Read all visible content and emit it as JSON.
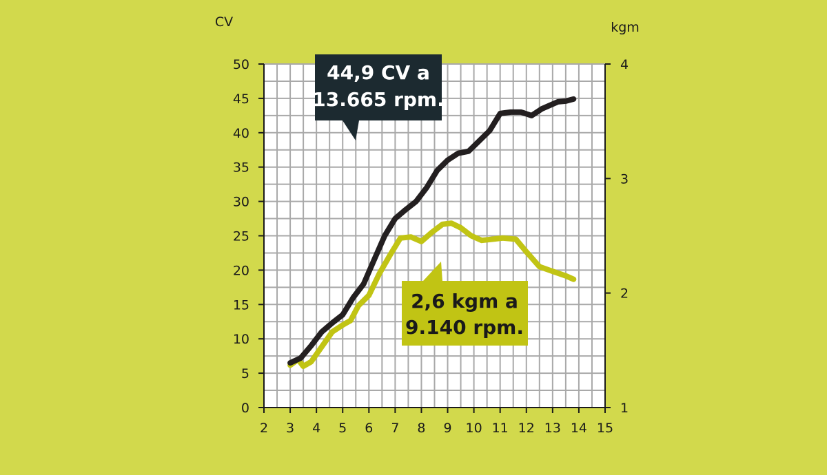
{
  "colors": {
    "background": "#d2d94c",
    "plot_area": "#ffffff",
    "grid": "#a9a9a9",
    "power_line": "#231f20",
    "torque_line": "#c1c414",
    "power_callout_bg": "#1c2a30",
    "power_callout_text": "#ffffff",
    "torque_callout_bg": "#c1c414",
    "torque_callout_text": "#1a1a1a"
  },
  "chart_data": {
    "type": "line",
    "xlabel": "",
    "ylabel_left": "CV",
    "ylabel_right": "kgm",
    "xlim": [
      2,
      15
    ],
    "ylim_left": [
      0,
      50
    ],
    "ylim_right": [
      1,
      4
    ],
    "x_ticks": [
      "2",
      "3",
      "4",
      "5",
      "6",
      "7",
      "8",
      "9",
      "10",
      "11",
      "12",
      "13",
      "14",
      "15"
    ],
    "y_left_ticks": [
      "0",
      "5",
      "10",
      "15",
      "20",
      "25",
      "30",
      "35",
      "40",
      "45",
      "50"
    ],
    "y_right_ticks": [
      "1",
      "2",
      "3",
      "4"
    ],
    "grid": true,
    "series": [
      {
        "key": "power",
        "axis": "left",
        "x": [
          3.0,
          3.4,
          3.8,
          4.2,
          4.6,
          5.0,
          5.4,
          5.8,
          6.2,
          6.6,
          7.0,
          7.4,
          7.8,
          8.2,
          8.6,
          9.0,
          9.4,
          9.8,
          10.2,
          10.6,
          11.0,
          11.4,
          11.8,
          12.2,
          12.6,
          12.9,
          13.2,
          13.5,
          13.8
        ],
        "y": [
          6.5,
          7.2,
          9.0,
          11.0,
          12.3,
          13.5,
          16.0,
          18.0,
          21.5,
          25.0,
          27.5,
          28.8,
          30.0,
          32.0,
          34.5,
          36.0,
          37.0,
          37.3,
          38.8,
          40.3,
          42.8,
          43.0,
          43.0,
          42.5,
          43.5,
          44.0,
          44.5,
          44.6,
          44.9
        ]
      },
      {
        "key": "torque",
        "axis": "right",
        "x": [
          3.0,
          3.3,
          3.5,
          3.8,
          4.2,
          4.6,
          5.0,
          5.3,
          5.6,
          6.0,
          6.4,
          6.8,
          7.2,
          7.6,
          8.0,
          8.4,
          8.8,
          9.14,
          9.5,
          9.9,
          10.3,
          10.7,
          11.1,
          11.6,
          12.0,
          12.5,
          13.0,
          13.5,
          13.8
        ],
        "y": [
          1.37,
          1.42,
          1.36,
          1.4,
          1.53,
          1.66,
          1.72,
          1.76,
          1.89,
          1.98,
          2.17,
          2.33,
          2.48,
          2.49,
          2.45,
          2.53,
          2.6,
          2.61,
          2.57,
          2.5,
          2.46,
          2.47,
          2.48,
          2.47,
          2.36,
          2.23,
          2.19,
          2.15,
          2.12
        ]
      }
    ],
    "annotations": [
      {
        "key": "power_callout",
        "lines": [
          "44,9 CV a",
          "13.665 rpm."
        ]
      },
      {
        "key": "torque_callout",
        "lines": [
          "2,6 kgm a",
          "9.140 rpm."
        ]
      }
    ]
  }
}
